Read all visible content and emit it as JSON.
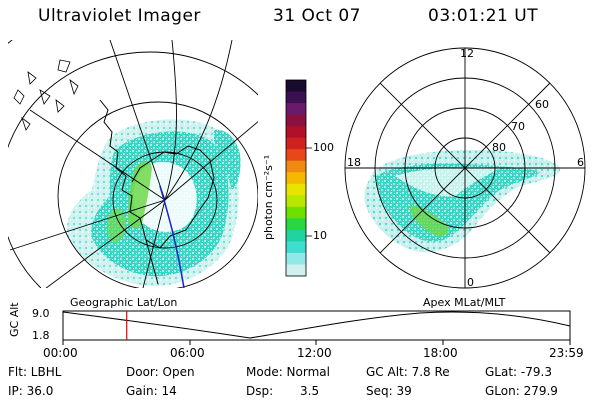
{
  "header": {
    "title": "Ultraviolet Imager",
    "date": "31 Oct 07",
    "time": "03:01:21 UT"
  },
  "left_panel": {
    "label": "Geographic Lat/Lon"
  },
  "right_panel": {
    "label": "Apex MLat/MLT",
    "mlt_labels": {
      "top": "12",
      "left": "18",
      "right": "6",
      "bottom": "0"
    },
    "lat_labels": [
      "60",
      "70",
      "80"
    ]
  },
  "colorbar": {
    "unit": "photon cm⁻²s⁻¹",
    "ticks": [
      "100",
      "10"
    ],
    "colors": [
      "#1a0a2e",
      "#3a1050",
      "#6a1a6a",
      "#8a1040",
      "#b01028",
      "#d02020",
      "#e84818",
      "#f08a10",
      "#f4b800",
      "#e8e400",
      "#b8e800",
      "#6ee000",
      "#28d840",
      "#20d4a0",
      "#40dcd0",
      "#90e8e8",
      "#d0f0f0"
    ]
  },
  "timeline": {
    "axis_label": "GC Alt",
    "y_ticks": [
      "9.0",
      "1.8"
    ],
    "x_ticks": [
      "00:00",
      "06:00",
      "12:00",
      "18:00",
      "23:59"
    ],
    "current_time_fraction": 0.1257,
    "marker_color": "#e00000"
  },
  "info": {
    "flt": "Flt: LBHL",
    "door": "Door: Open",
    "mode": "Mode: Normal",
    "gc_alt": "GC Alt: 7.8 Re",
    "glat": "GLat: -79.3",
    "ip": "IP: 36.0",
    "gain": "Gain: 14",
    "dsp_label": "Dsp:",
    "dsp_value": "3.5",
    "seq": "Seq: 39",
    "glon": "GLon: 279.9"
  },
  "colors": {
    "aurora_main": "#30d4c0",
    "aurora_bright": "#50d060",
    "aurora_light": "#a8e8e0"
  }
}
